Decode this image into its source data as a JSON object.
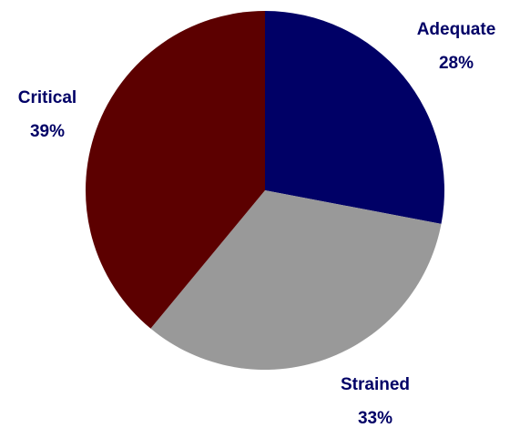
{
  "chart_data": {
    "type": "pie",
    "title": "",
    "categories": [
      "Adequate",
      "Strained",
      "Critical"
    ],
    "values": [
      28,
      33,
      39
    ],
    "labels": [
      "28%",
      "33%",
      "39%"
    ],
    "colors": [
      "#000066",
      "#999999",
      "#5c0000"
    ],
    "start_angle_deg": 0,
    "direction": "clockwise",
    "legend": "none"
  }
}
